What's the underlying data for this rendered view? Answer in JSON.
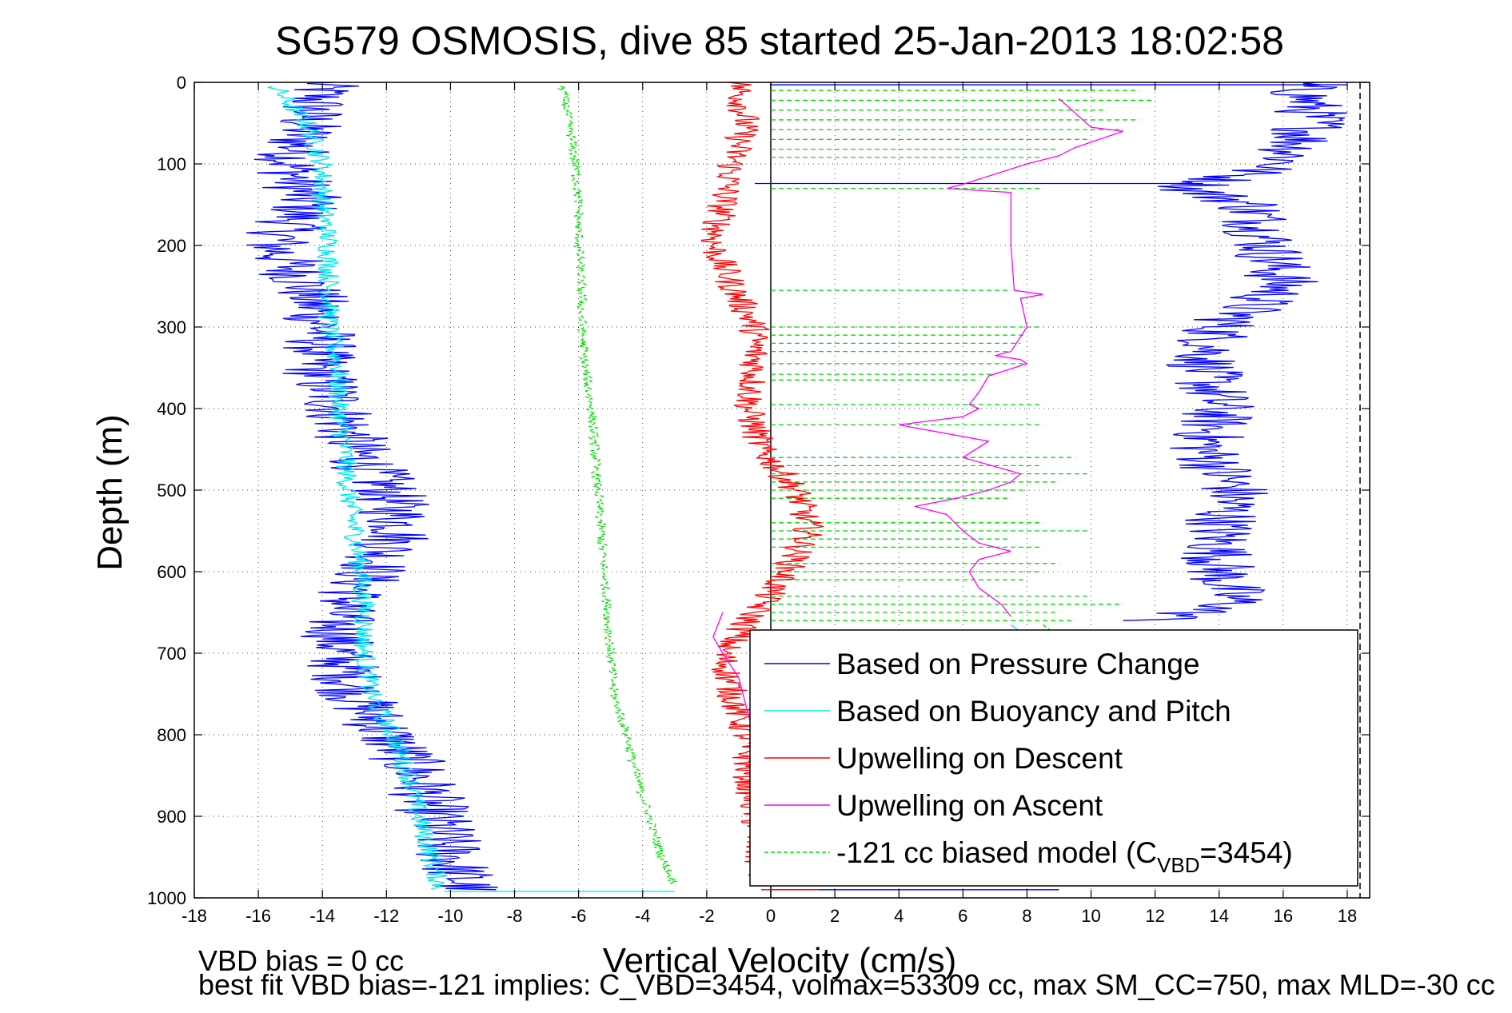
{
  "chart_data": {
    "type": "line",
    "title": "SG579 OSMOSIS, dive 85 started 25-Jan-2013 18:02:58",
    "xlabel": "Vertical Velocity (cm/s)",
    "ylabel": "Depth (m)",
    "xlim": [
      -18,
      18.7
    ],
    "ylim": [
      0,
      1000
    ],
    "y_reversed": true,
    "grid": true,
    "x_ticks": [
      -18,
      -16,
      -14,
      -12,
      -10,
      -8,
      -6,
      -4,
      -2,
      0,
      2,
      4,
      6,
      8,
      10,
      12,
      14,
      16,
      18
    ],
    "y_ticks": [
      0,
      100,
      200,
      300,
      400,
      500,
      600,
      700,
      800,
      900,
      1000
    ],
    "legend_position": "bottom-right",
    "series": [
      {
        "name": "Based on Pressure Change",
        "color": "#0000ff",
        "style": "solid",
        "noise": 1.2,
        "segments": [
          {
            "depth": [
              0,
              50,
              100,
              150,
              200,
              250,
              300,
              350,
              400,
              450,
              500,
              550,
              600,
              650,
              700,
              750,
              800,
              850,
              900,
              950,
              990
            ],
            "value": [
              -14,
              -14.5,
              -15,
              -14.5,
              -15.5,
              -14.5,
              -14,
              -14.2,
              -13.5,
              -13,
              -12,
              -11.5,
              -12.5,
              -13.5,
              -13.5,
              -13,
              -12,
              -11,
              -10.5,
              -10,
              -9.5
            ]
          },
          {
            "depth": [
              0,
              50,
              100,
              130,
              150,
              200,
              250,
              300,
              350,
              400,
              450,
              500,
              550,
              600,
              640,
              660
            ],
            "value": [
              16.5,
              17,
              16,
              13,
              15,
              15.5,
              16,
              14,
              13.5,
              14,
              13.5,
              14.5,
              14,
              14,
              14.5,
              12
            ]
          }
        ]
      },
      {
        "name": "Based on Buoyancy and Pitch",
        "color": "#00e5ee",
        "style": "solid",
        "noise": 0.35,
        "segments": [
          {
            "depth": [
              5,
              50,
              100,
              150,
              200,
              250,
              300,
              350,
              400,
              450,
              500,
              550,
              600,
              650,
              700,
              750,
              800,
              850,
              900,
              950,
              990
            ],
            "value": [
              -15.5,
              -14.5,
              -14,
              -14,
              -13.8,
              -13.8,
              -13.8,
              -13.5,
              -13.5,
              -13.3,
              -13.2,
              -13,
              -12.8,
              -12.7,
              -12.7,
              -12.5,
              -11.8,
              -11.3,
              -11,
              -10.6,
              -10.3
            ]
          },
          {
            "depth": [
              665,
              680
            ],
            "value": [
              7.5,
              8
            ]
          }
        ]
      },
      {
        "name": "Upwelling on Descent",
        "color": "#ff0000",
        "style": "solid",
        "noise": 0.5,
        "segments": [
          {
            "depth": [
              0,
              50,
              100,
              150,
              200,
              250,
              300,
              350,
              400,
              450,
              500,
              550,
              600,
              650,
              700,
              750,
              800,
              850,
              900,
              950,
              985
            ],
            "value": [
              -1,
              -0.8,
              -1.2,
              -1.5,
              -1.8,
              -1.2,
              -0.5,
              -0.5,
              -0.7,
              -0.3,
              0.8,
              1.2,
              0.5,
              -0.5,
              -1.5,
              -1.2,
              -0.8,
              -0.7,
              -0.5,
              -0.4,
              -0.3
            ]
          }
        ]
      },
      {
        "name": "Upwelling on Ascent",
        "color": "#ff00ff",
        "style": "solid",
        "noise": 0,
        "segments": [
          {
            "depth": [
              650,
              680,
              700,
              730,
              760,
              790,
              810
            ],
            "value": [
              -1.5,
              -1.8,
              -1.5,
              -1,
              -0.8,
              -0.6,
              -0.5
            ]
          },
          {
            "depth": [
              20,
              55,
              60,
              80,
              90,
              100,
              125,
              130,
              135,
              200,
              255,
              260,
              265,
              300,
              330,
              335,
              340,
              345,
              360,
              380,
              395,
              400,
              410,
              420,
              440,
              460,
              480,
              490,
              500,
              510,
              520,
              530,
              550,
              565,
              575,
              585,
              600,
              620,
              640,
              655
            ],
            "value": [
              9,
              10,
              11,
              9.5,
              9,
              8,
              6,
              5.5,
              7.5,
              7.5,
              7.6,
              8.5,
              7.8,
              8,
              7.5,
              7,
              7.8,
              8,
              6.8,
              6.5,
              6.2,
              6.5,
              6,
              4,
              6.8,
              6,
              7.8,
              7.5,
              6.8,
              5.8,
              4.5,
              5.5,
              6,
              6.5,
              7.5,
              6.5,
              6.2,
              6.5,
              7.2,
              7.5
            ]
          }
        ]
      },
      {
        "name": "-121 cc biased model (C_VBD=3454)",
        "color": "#00dd00",
        "style": "dashed",
        "noise": 0.15,
        "segments": [
          {
            "depth": [
              5,
              50,
              100,
              150,
              200,
              250,
              300,
              350,
              400,
              450,
              500,
              550,
              600,
              650,
              700,
              750,
              800,
              850,
              900,
              950,
              985
            ],
            "value": [
              -6.5,
              -6.3,
              -6.1,
              -6,
              -6,
              -5.9,
              -5.9,
              -5.8,
              -5.6,
              -5.5,
              -5.4,
              -5.3,
              -5.2,
              -5.1,
              -5,
              -4.9,
              -4.5,
              -4.2,
              -3.8,
              -3.4,
              -3
            ]
          },
          {
            "depth": [
              665,
              680
            ],
            "value": [
              8.5,
              9
            ]
          }
        ]
      }
    ],
    "horizontal_spikes": [
      {
        "color": "#00dd00",
        "style": "dashed",
        "x_from": 0,
        "depths": [
          10,
          22,
          34,
          46,
          58,
          70,
          82,
          92,
          130,
          255,
          300,
          310,
          320,
          330,
          345,
          358,
          365,
          395,
          420,
          460,
          470,
          480,
          490,
          500,
          510,
          540,
          550,
          560,
          570,
          590,
          600,
          610,
          630,
          640,
          650,
          660
        ],
        "x_to": [
          11.5,
          12,
          10.5,
          11.5,
          11,
          10,
          9,
          8.5,
          8.5,
          7.5,
          8.5,
          8,
          7.8,
          7.5,
          8,
          7,
          6.5,
          8.5,
          8.5,
          9.5,
          8.5,
          10,
          9,
          8,
          7.5,
          8.5,
          10,
          7.5,
          8.5,
          9,
          8.5,
          8,
          10,
          11,
          9,
          9.5
        ]
      },
      {
        "color": "#0000ff",
        "style": "solid",
        "x_from": 0,
        "depths": [
          3,
          990
        ],
        "x_to": [
          18,
          9
        ]
      },
      {
        "color": "#0000ff",
        "style": "solid",
        "x_from": 13.5,
        "depths": [
          124
        ],
        "x_to": [
          -0.5
        ]
      },
      {
        "color": "#00e5ee",
        "style": "solid",
        "x_from": -10.2,
        "depths": [
          992
        ],
        "x_to": [
          -3
        ]
      },
      {
        "color": "#ff0000",
        "style": "solid",
        "x_from": -0.3,
        "depths": [
          990
        ],
        "x_to": [
          1.5
        ]
      }
    ],
    "reference_lines": [
      {
        "orientation": "vertical",
        "x": 18.4,
        "color": "#000000",
        "style": "dashed"
      },
      {
        "orientation": "vertical",
        "x": 0,
        "color": "#000000",
        "style": "solid"
      }
    ]
  },
  "legend": {
    "items": [
      {
        "label": "Based on Pressure Change",
        "color": "#0000ff",
        "style": "solid"
      },
      {
        "label": "Based on Buoyancy and Pitch",
        "color": "#00e5ee",
        "style": "solid"
      },
      {
        "label": "Upwelling on Descent",
        "color": "#ff0000",
        "style": "solid"
      },
      {
        "label": "Upwelling on Ascent",
        "color": "#ff00ff",
        "style": "solid"
      },
      {
        "label_main": "-121 cc biased model (C",
        "label_sub": "VBD",
        "label_tail": "=3454)",
        "color": "#00dd00",
        "style": "dashed"
      }
    ]
  },
  "footer": {
    "line1": "VBD bias = 0 cc",
    "line2": "best fit VBD bias=-121 implies: C_VBD=3454, volmax=53309 cc, max SM_CC=750, max MLD=-30 cc"
  }
}
